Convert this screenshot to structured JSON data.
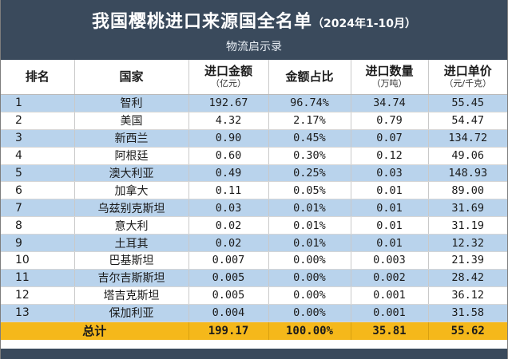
{
  "header": {
    "title": "我国樱桃进口来源国全名单",
    "period": "（2024年1-10月）",
    "subtitle": "物流启示录",
    "bg_color": "#3a4a5c"
  },
  "columns": [
    {
      "label": "排名",
      "unit": ""
    },
    {
      "label": "国家",
      "unit": ""
    },
    {
      "label": "进口金额",
      "unit": "（亿元）"
    },
    {
      "label": "金额占比",
      "unit": ""
    },
    {
      "label": "进口数量",
      "unit": "（万吨）"
    },
    {
      "label": "进口单价",
      "unit": "（元/千克）"
    }
  ],
  "rows": [
    {
      "rank": "1",
      "country": "智利",
      "amount": "192.67",
      "share": "96.74%",
      "quantity": "34.74",
      "price": "55.45"
    },
    {
      "rank": "2",
      "country": "美国",
      "amount": "4.32",
      "share": "2.17%",
      "quantity": "0.79",
      "price": "54.47"
    },
    {
      "rank": "3",
      "country": "新西兰",
      "amount": "0.90",
      "share": "0.45%",
      "quantity": "0.07",
      "price": "134.72"
    },
    {
      "rank": "4",
      "country": "阿根廷",
      "amount": "0.60",
      "share": "0.30%",
      "quantity": "0.12",
      "price": "49.06"
    },
    {
      "rank": "5",
      "country": "澳大利亚",
      "amount": "0.49",
      "share": "0.25%",
      "quantity": "0.03",
      "price": "148.93"
    },
    {
      "rank": "6",
      "country": "加拿大",
      "amount": "0.11",
      "share": "0.05%",
      "quantity": "0.01",
      "price": "89.00"
    },
    {
      "rank": "7",
      "country": "乌兹别克斯坦",
      "amount": "0.03",
      "share": "0.01%",
      "quantity": "0.01",
      "price": "31.69"
    },
    {
      "rank": "8",
      "country": "意大利",
      "amount": "0.02",
      "share": "0.01%",
      "quantity": "0.01",
      "price": "31.19"
    },
    {
      "rank": "9",
      "country": "土耳其",
      "amount": "0.02",
      "share": "0.01%",
      "quantity": "0.01",
      "price": "12.32"
    },
    {
      "rank": "10",
      "country": "巴基斯坦",
      "amount": "0.007",
      "share": "0.00%",
      "quantity": "0.003",
      "price": "21.39"
    },
    {
      "rank": "11",
      "country": "吉尔吉斯斯坦",
      "amount": "0.005",
      "share": "0.00%",
      "quantity": "0.002",
      "price": "28.42"
    },
    {
      "rank": "12",
      "country": "塔吉克斯坦",
      "amount": "0.005",
      "share": "0.00%",
      "quantity": "0.001",
      "price": "36.12"
    },
    {
      "rank": "13",
      "country": "保加利亚",
      "amount": "0.004",
      "share": "0.00%",
      "quantity": "0.001",
      "price": "31.58"
    }
  ],
  "total": {
    "label": "总计",
    "amount": "199.17",
    "share": "100.00%",
    "quantity": "35.81",
    "price": "55.62"
  },
  "colors": {
    "row_stripe": "#b9d3ec",
    "total_bg": "#f5b81a"
  }
}
